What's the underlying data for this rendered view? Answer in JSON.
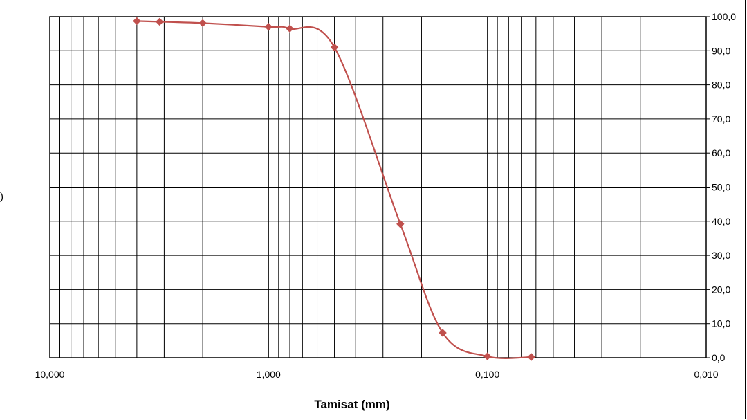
{
  "chart_data": {
    "type": "line",
    "title": "",
    "xlabel": "Tamisat (mm)",
    "ylabel": "",
    "x_scale": "log",
    "x_reversed": true,
    "xlim": [
      10,
      0.01
    ],
    "ylim": [
      0,
      100
    ],
    "x_tick_labels": [
      "10,000",
      "1,000",
      "0,100",
      "0,010"
    ],
    "y_tick_labels": [
      "0,0",
      "10,0",
      "20,0",
      "30,0",
      "40,0",
      "50,0",
      "60,0",
      "70,0",
      "80,0",
      "90,0",
      "100,0"
    ],
    "y_axis_side": "right",
    "grid": true,
    "legend": "none",
    "series": [
      {
        "color": "#c0504d",
        "marker": "diamond",
        "smooth": true,
        "x": [
          4,
          3.15,
          2,
          1,
          0.8,
          0.5,
          0.25,
          0.16,
          0.1,
          0.063
        ],
        "y": [
          98.7,
          98.5,
          98.1,
          97.0,
          96.5,
          91.0,
          39.2,
          7.3,
          0.4,
          0.2
        ]
      }
    ]
  }
}
